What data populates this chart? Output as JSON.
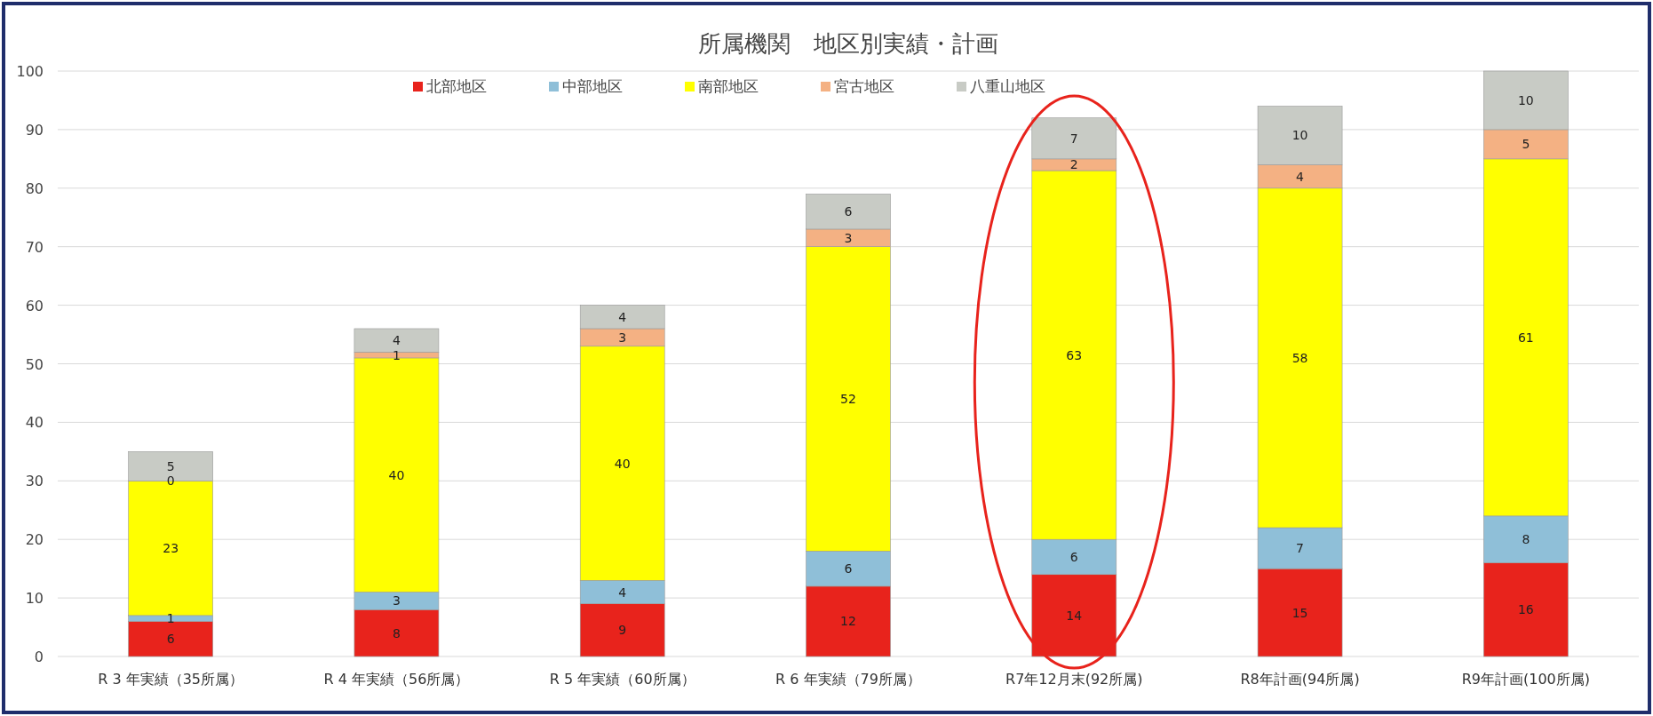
{
  "chart_data": {
    "type": "bar",
    "title": "所属機関　地区別実績・計画",
    "stacked": true,
    "categories": [
      "R 3 年実績（35所属）",
      "R 4 年実績（56所属）",
      "R 5 年実績（60所属）",
      "R 6 年実績（79所属）",
      "R7年12月末(92所属)",
      "R8年計画(94所属)",
      "R9年計画(100所属)"
    ],
    "series": [
      {
        "name": "北部地区",
        "color": "#e8231c",
        "values": [
          6,
          8,
          9,
          12,
          14,
          15,
          16
        ]
      },
      {
        "name": "中部地区",
        "color": "#8fbfd8",
        "values": [
          1,
          3,
          4,
          6,
          6,
          7,
          8
        ]
      },
      {
        "name": "南部地区",
        "color": "#ffff00",
        "values": [
          23,
          40,
          40,
          52,
          63,
          58,
          61
        ]
      },
      {
        "name": "宮古地区",
        "color": "#f4b183",
        "values": [
          0,
          1,
          3,
          3,
          2,
          4,
          5
        ]
      },
      {
        "name": "八重山地区",
        "color": "#c8cbc5",
        "values": [
          5,
          4,
          4,
          6,
          7,
          10,
          10
        ]
      }
    ],
    "ylim": [
      0,
      100
    ],
    "yticks": [
      0,
      10,
      20,
      30,
      40,
      50,
      60,
      70,
      80,
      90,
      100
    ],
    "grid": "y",
    "legend": "top",
    "data_labels": true
  }
}
